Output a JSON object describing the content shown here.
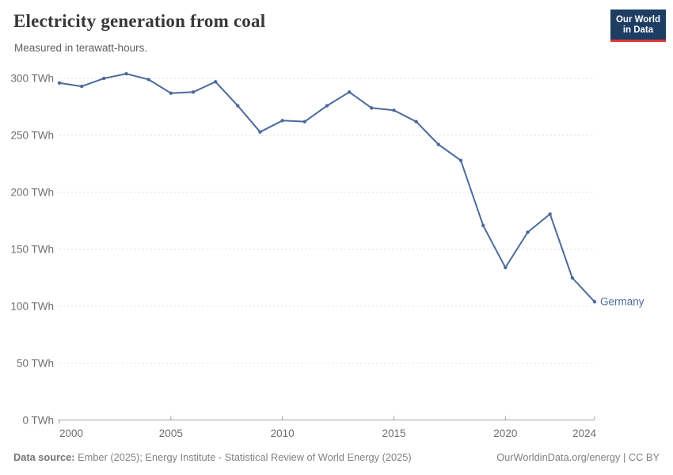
{
  "header": {
    "title": "Electricity generation from coal",
    "subtitle": "Measured in terawatt-hours."
  },
  "logo": {
    "line1": "Our World",
    "line2": "in Data",
    "bg_color": "#1d3d63",
    "stripe_color": "#dc3b35"
  },
  "chart_data": {
    "type": "line",
    "title": "Electricity generation from coal",
    "unit": "TWh",
    "xlabel": "",
    "ylabel": "",
    "xlim": [
      2000,
      2024
    ],
    "ylim": [
      0,
      300
    ],
    "grid": "horizontal-dashed",
    "legend": "end-of-line-label",
    "series": [
      {
        "name": "Germany",
        "color": "#4C6A9C",
        "x": [
          2000,
          2001,
          2002,
          2003,
          2004,
          2005,
          2006,
          2007,
          2008,
          2009,
          2010,
          2011,
          2012,
          2013,
          2014,
          2015,
          2016,
          2017,
          2018,
          2019,
          2020,
          2021,
          2022,
          2023,
          2024
        ],
        "values": [
          296,
          293,
          300,
          304,
          299,
          287,
          288,
          297,
          276,
          253,
          263,
          262,
          276,
          288,
          274,
          272,
          262,
          242,
          228,
          171,
          134,
          165,
          181,
          125,
          104
        ]
      }
    ],
    "y_axis": {
      "ticks": [
        {
          "v": 0,
          "label": "0 TWh"
        },
        {
          "v": 50,
          "label": "50 TWh"
        },
        {
          "v": 100,
          "label": "100 TWh"
        },
        {
          "v": 150,
          "label": "150 TWh"
        },
        {
          "v": 200,
          "label": "200 TWh"
        },
        {
          "v": 250,
          "label": "250 TWh"
        },
        {
          "v": 300,
          "label": "300 TWh"
        }
      ]
    },
    "x_axis": {
      "ticks": [
        {
          "v": 2000,
          "label": "2000"
        },
        {
          "v": 2005,
          "label": "2005"
        },
        {
          "v": 2010,
          "label": "2010"
        },
        {
          "v": 2015,
          "label": "2015"
        },
        {
          "v": 2020,
          "label": "2020"
        },
        {
          "v": 2024,
          "label": "2024"
        }
      ]
    }
  },
  "footer": {
    "source_label": "Data source:",
    "source_text": " Ember (2025); Energy Institute - Statistical Review of World Energy (2025)",
    "right_text": "OurWorldinData.org/energy | CC BY"
  },
  "colors": {
    "line": "#4C6A9C",
    "grid": "#dddddd",
    "axis": "#a5a5a5",
    "tick_label": "#6e6e6e",
    "title": "#383838",
    "subtitle": "#5f5f5f",
    "footer": "#818181"
  }
}
